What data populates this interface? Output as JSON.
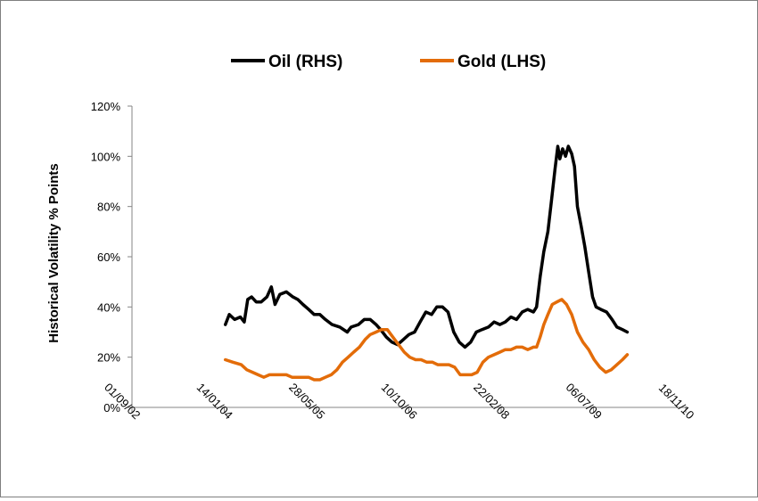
{
  "chart_data": {
    "type": "line",
    "title": "",
    "xlabel": "",
    "ylabel": "Historical Volatility % Points",
    "xlim": [
      "2002-09-01",
      "2010-11-18"
    ],
    "ylim": [
      0,
      120
    ],
    "y_ticks": [
      0,
      20,
      40,
      60,
      80,
      100,
      120
    ],
    "y_tick_labels": [
      "0%",
      "20%",
      "40%",
      "60%",
      "80%",
      "100%",
      "120%"
    ],
    "x_ticks": [
      "2002-09-01",
      "2004-01-14",
      "2005-05-28",
      "2006-10-10",
      "2008-02-22",
      "2009-07-06",
      "2010-11-18"
    ],
    "x_tick_labels": [
      "01/09/02",
      "14/01/04",
      "28/05/05",
      "10/10/06",
      "22/02/08",
      "06/07/09",
      "18/11/10"
    ],
    "grid": false,
    "legend": "top",
    "series": [
      {
        "name": "Oil (RHS)",
        "color": "#000000",
        "points": [
          [
            "2004-01-20",
            33
          ],
          [
            "2004-02-10",
            37
          ],
          [
            "2004-03-10",
            35
          ],
          [
            "2004-04-10",
            36
          ],
          [
            "2004-05-01",
            34
          ],
          [
            "2004-05-20",
            43
          ],
          [
            "2004-06-10",
            44
          ],
          [
            "2004-07-05",
            42
          ],
          [
            "2004-08-01",
            42
          ],
          [
            "2004-09-01",
            44
          ],
          [
            "2004-09-25",
            48
          ],
          [
            "2004-10-15",
            41
          ],
          [
            "2004-11-10",
            45
          ],
          [
            "2004-12-15",
            46
          ],
          [
            "2005-01-20",
            44
          ],
          [
            "2005-02-15",
            43
          ],
          [
            "2005-03-15",
            41
          ],
          [
            "2005-04-15",
            39
          ],
          [
            "2005-05-15",
            37
          ],
          [
            "2005-06-15",
            37
          ],
          [
            "2005-07-15",
            35
          ],
          [
            "2005-08-20",
            33
          ],
          [
            "2005-10-01",
            32
          ],
          [
            "2005-11-10",
            30
          ],
          [
            "2005-12-01",
            32
          ],
          [
            "2006-01-10",
            33
          ],
          [
            "2006-02-10",
            35
          ],
          [
            "2006-03-15",
            35
          ],
          [
            "2006-04-15",
            33
          ],
          [
            "2006-05-10",
            31
          ],
          [
            "2006-06-10",
            28
          ],
          [
            "2006-07-10",
            26
          ],
          [
            "2006-08-10",
            25
          ],
          [
            "2006-09-10",
            27
          ],
          [
            "2006-10-10",
            29
          ],
          [
            "2006-11-10",
            30
          ],
          [
            "2006-12-10",
            34
          ],
          [
            "2007-01-10",
            38
          ],
          [
            "2007-02-10",
            37
          ],
          [
            "2007-03-10",
            40
          ],
          [
            "2007-04-10",
            40
          ],
          [
            "2007-05-10",
            38
          ],
          [
            "2007-06-10",
            30
          ],
          [
            "2007-07-10",
            26
          ],
          [
            "2007-08-10",
            24
          ],
          [
            "2007-09-10",
            26
          ],
          [
            "2007-10-10",
            30
          ],
          [
            "2007-11-10",
            31
          ],
          [
            "2007-12-15",
            32
          ],
          [
            "2008-01-15",
            34
          ],
          [
            "2008-02-15",
            33
          ],
          [
            "2008-03-15",
            34
          ],
          [
            "2008-04-15",
            36
          ],
          [
            "2008-05-15",
            35
          ],
          [
            "2008-06-15",
            38
          ],
          [
            "2008-07-15",
            39
          ],
          [
            "2008-08-15",
            38
          ],
          [
            "2008-09-01",
            40
          ],
          [
            "2008-09-20",
            52
          ],
          [
            "2008-10-10",
            62
          ],
          [
            "2008-11-01",
            70
          ],
          [
            "2008-11-20",
            82
          ],
          [
            "2008-12-10",
            95
          ],
          [
            "2008-12-25",
            104
          ],
          [
            "2009-01-05",
            99
          ],
          [
            "2009-01-20",
            103
          ],
          [
            "2009-02-05",
            100
          ],
          [
            "2009-02-20",
            104
          ],
          [
            "2009-03-10",
            101
          ],
          [
            "2009-03-25",
            96
          ],
          [
            "2009-04-10",
            80
          ],
          [
            "2009-05-01",
            72
          ],
          [
            "2009-05-20",
            64
          ],
          [
            "2009-06-10",
            54
          ],
          [
            "2009-07-01",
            44
          ],
          [
            "2009-07-20",
            40
          ],
          [
            "2009-08-15",
            39
          ],
          [
            "2009-09-15",
            38
          ],
          [
            "2009-10-15",
            35
          ],
          [
            "2009-11-10",
            32
          ],
          [
            "2009-12-10",
            31
          ],
          [
            "2010-01-05",
            30
          ]
        ]
      },
      {
        "name": "Gold (LHS)",
        "color": "#e36c09",
        "points": [
          [
            "2004-01-20",
            19
          ],
          [
            "2004-03-01",
            18
          ],
          [
            "2004-04-15",
            17
          ],
          [
            "2004-05-15",
            15
          ],
          [
            "2004-06-15",
            14
          ],
          [
            "2004-07-15",
            13
          ],
          [
            "2004-08-15",
            12
          ],
          [
            "2004-09-15",
            13
          ],
          [
            "2004-10-15",
            13
          ],
          [
            "2004-11-15",
            13
          ],
          [
            "2004-12-15",
            13
          ],
          [
            "2005-01-15",
            12
          ],
          [
            "2005-02-15",
            12
          ],
          [
            "2005-03-15",
            12
          ],
          [
            "2005-04-15",
            12
          ],
          [
            "2005-05-15",
            11
          ],
          [
            "2005-06-15",
            11
          ],
          [
            "2005-07-15",
            12
          ],
          [
            "2005-08-15",
            13
          ],
          [
            "2005-09-15",
            15
          ],
          [
            "2005-10-15",
            18
          ],
          [
            "2005-11-15",
            20
          ],
          [
            "2005-12-15",
            22
          ],
          [
            "2006-01-15",
            24
          ],
          [
            "2006-02-15",
            27
          ],
          [
            "2006-03-15",
            29
          ],
          [
            "2006-04-15",
            30
          ],
          [
            "2006-05-15",
            31
          ],
          [
            "2006-06-15",
            31
          ],
          [
            "2006-07-15",
            28
          ],
          [
            "2006-08-15",
            25
          ],
          [
            "2006-09-15",
            22
          ],
          [
            "2006-10-15",
            20
          ],
          [
            "2006-11-15",
            19
          ],
          [
            "2006-12-15",
            19
          ],
          [
            "2007-01-15",
            18
          ],
          [
            "2007-02-15",
            18
          ],
          [
            "2007-03-15",
            17
          ],
          [
            "2007-04-15",
            17
          ],
          [
            "2007-05-15",
            17
          ],
          [
            "2007-06-15",
            16
          ],
          [
            "2007-07-15",
            13
          ],
          [
            "2007-08-15",
            13
          ],
          [
            "2007-09-15",
            13
          ],
          [
            "2007-10-15",
            14
          ],
          [
            "2007-11-15",
            18
          ],
          [
            "2007-12-15",
            20
          ],
          [
            "2008-01-15",
            21
          ],
          [
            "2008-02-15",
            22
          ],
          [
            "2008-03-15",
            23
          ],
          [
            "2008-04-15",
            23
          ],
          [
            "2008-05-15",
            24
          ],
          [
            "2008-06-15",
            24
          ],
          [
            "2008-07-15",
            23
          ],
          [
            "2008-08-15",
            24
          ],
          [
            "2008-09-01",
            24
          ],
          [
            "2008-09-20",
            28
          ],
          [
            "2008-10-10",
            33
          ],
          [
            "2008-11-01",
            37
          ],
          [
            "2008-11-25",
            41
          ],
          [
            "2008-12-20",
            42
          ],
          [
            "2009-01-15",
            43
          ],
          [
            "2009-02-10",
            41
          ],
          [
            "2009-03-10",
            37
          ],
          [
            "2009-04-10",
            30
          ],
          [
            "2009-05-10",
            26
          ],
          [
            "2009-06-10",
            23
          ],
          [
            "2009-07-10",
            19
          ],
          [
            "2009-08-10",
            16
          ],
          [
            "2009-09-10",
            14
          ],
          [
            "2009-10-10",
            15
          ],
          [
            "2009-11-10",
            17
          ],
          [
            "2009-12-10",
            19
          ],
          [
            "2010-01-05",
            21
          ]
        ]
      }
    ]
  }
}
